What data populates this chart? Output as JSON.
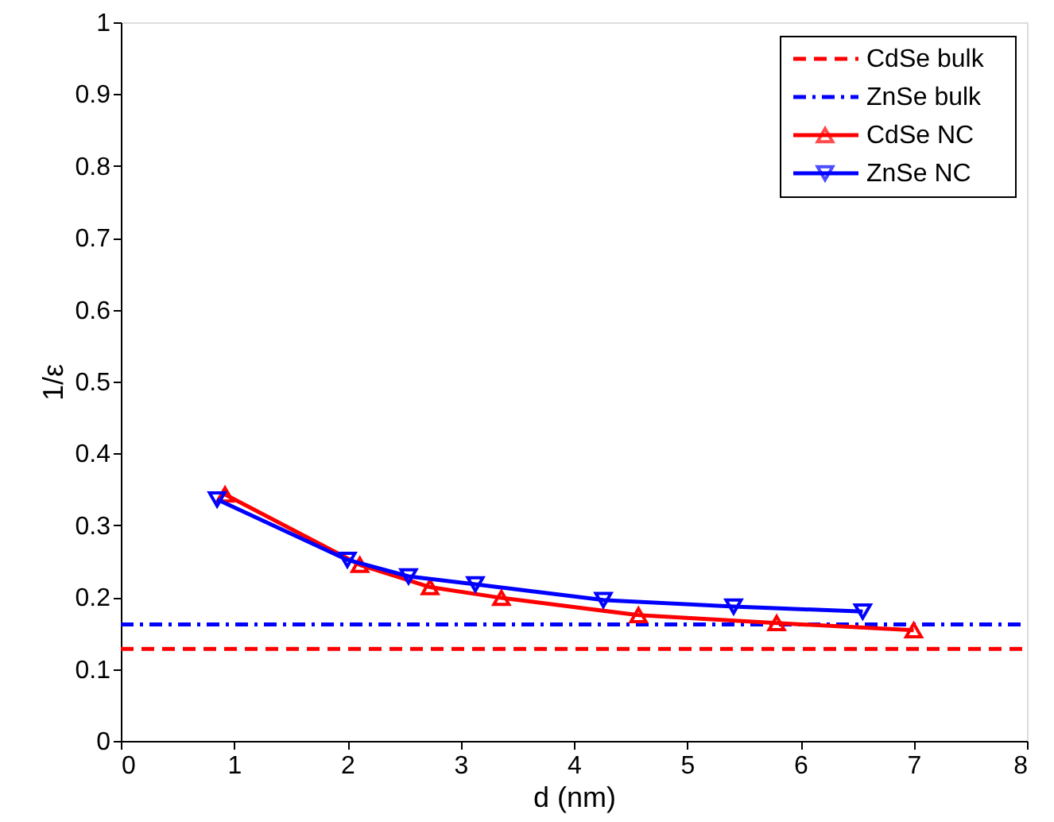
{
  "chart_data": {
    "type": "line",
    "xlabel": "d (nm)",
    "ylabel": "1/ε",
    "xlim": [
      0,
      8
    ],
    "ylim": [
      0,
      1
    ],
    "xticks": [
      0,
      1,
      2,
      3,
      4,
      5,
      6,
      7,
      8
    ],
    "yticks": [
      0,
      0.1,
      0.2,
      0.3,
      0.4,
      0.5,
      0.6,
      0.7,
      0.8,
      0.9,
      1
    ],
    "grid": false,
    "legend": "top right",
    "series": [
      {
        "name": "CdSe bulk",
        "color": "#ff0000",
        "x": [
          0,
          8
        ],
        "values": [
          0.128,
          0.128
        ],
        "line_style": "dashed",
        "marker": "none"
      },
      {
        "name": "ZnSe bulk",
        "color": "#0000ff",
        "x": [
          0,
          8
        ],
        "values": [
          0.162,
          0.162
        ],
        "line_style": "dashdot",
        "marker": "none"
      },
      {
        "name": "CdSe NC",
        "color": "#ff0000",
        "x": [
          0.92,
          2.11,
          2.73,
          3.36,
          4.57,
          5.79,
          7.0
        ],
        "values": [
          0.343,
          0.245,
          0.214,
          0.199,
          0.175,
          0.164,
          0.154
        ],
        "line_style": "solid",
        "marker": "triangle"
      },
      {
        "name": "ZnSe NC",
        "color": "#0000ff",
        "x": [
          0.85,
          2.0,
          2.54,
          3.13,
          4.26,
          5.41,
          6.55
        ],
        "values": [
          0.336,
          0.252,
          0.229,
          0.218,
          0.196,
          0.187,
          0.18
        ],
        "line_style": "solid",
        "marker": "triangle-down"
      }
    ]
  }
}
